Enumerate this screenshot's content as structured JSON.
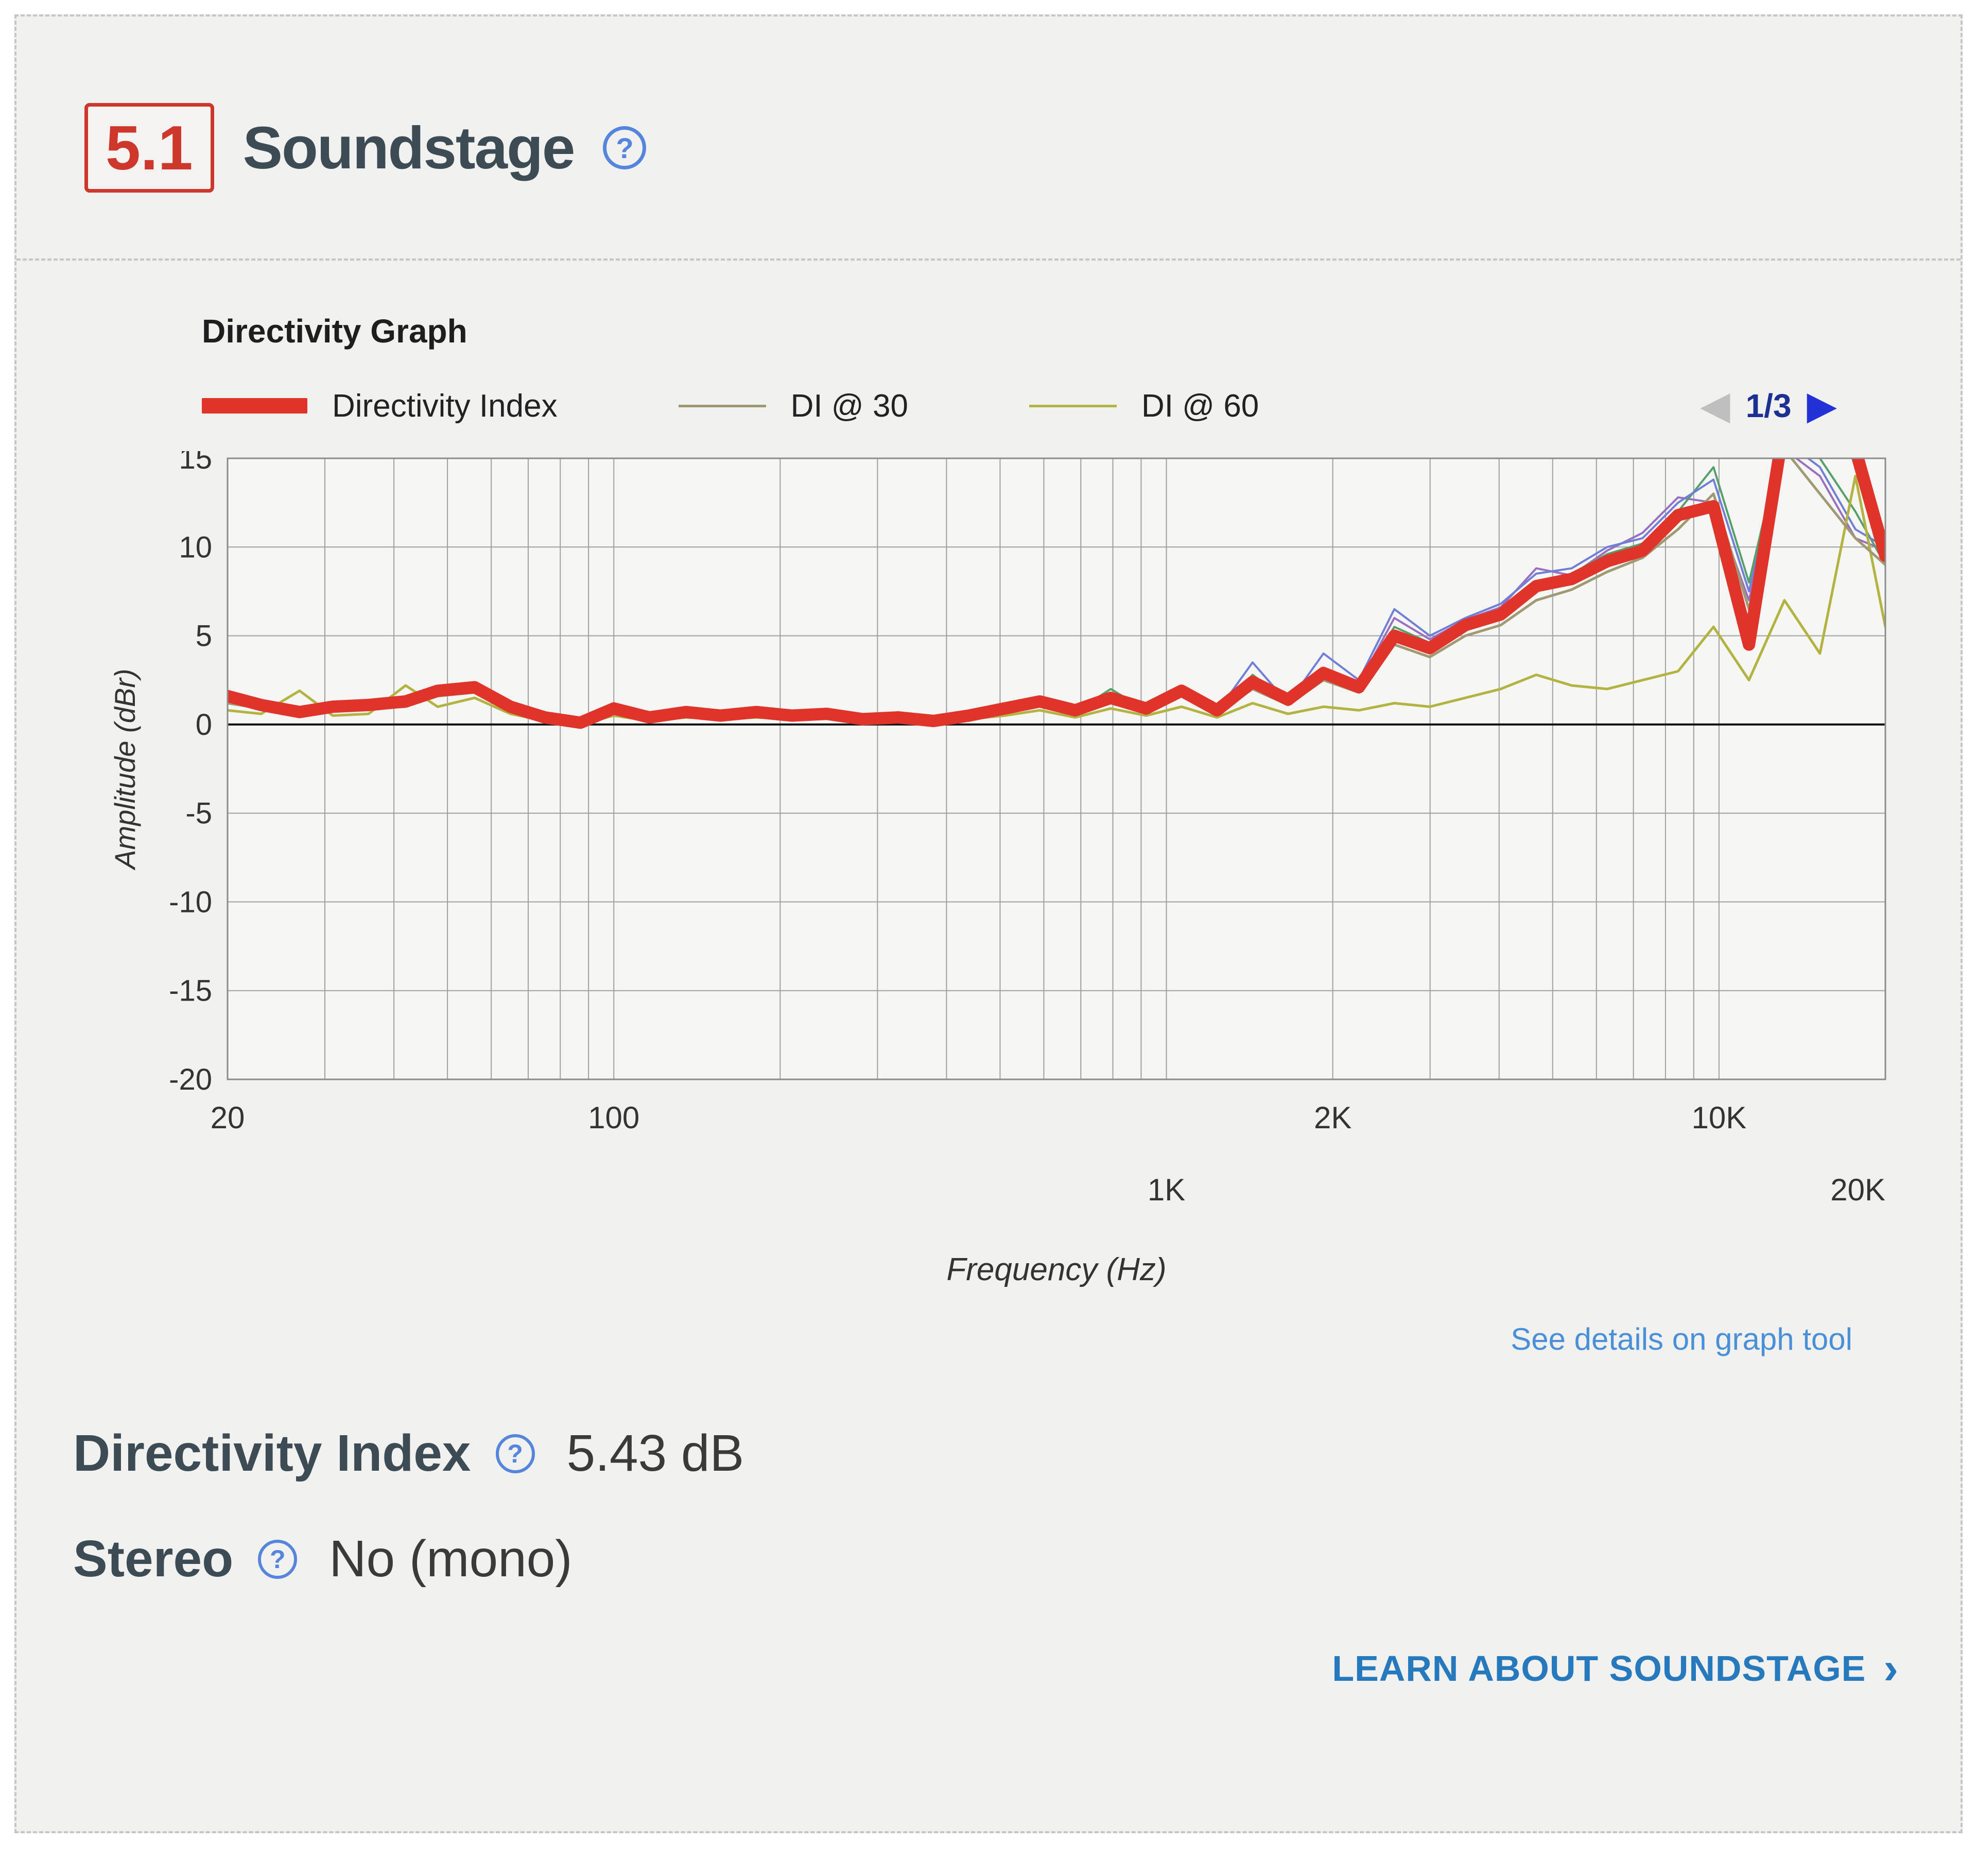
{
  "icons": {
    "help": "?",
    "prev": "◀",
    "next": "▶",
    "chevron": "›"
  },
  "header": {
    "section_number": "5.1",
    "title": "Soundstage"
  },
  "graph": {
    "title": "Directivity Graph",
    "legend": [
      {
        "label": "Directivity Index",
        "color": "#e0342b",
        "thick": true
      },
      {
        "label": "DI @ 30",
        "color": "#a09a74",
        "thick": false
      },
      {
        "label": "DI @ 60",
        "color": "#b3b342",
        "thick": false
      }
    ],
    "pagination": {
      "current": "1/3"
    },
    "see_details_link": "See details on graph tool"
  },
  "chart_data": {
    "type": "line",
    "title": "Directivity Graph",
    "xlabel": "Frequency (Hz)",
    "ylabel": "Amplitude (dBr)",
    "x_scale": "log",
    "xlim": [
      20,
      20000
    ],
    "ylim": [
      -20,
      15
    ],
    "grid": true,
    "y_ticks": [
      15,
      10,
      5,
      0,
      -5,
      -10,
      -15,
      -20
    ],
    "x_ticks_row1": [
      {
        "label": "20",
        "freq": 20
      },
      {
        "label": "100",
        "freq": 100
      },
      {
        "label": "2K",
        "freq": 2000
      },
      {
        "label": "10K",
        "freq": 10000
      }
    ],
    "x_ticks_row2": [
      {
        "label": "1K",
        "freq": 1000
      },
      {
        "label": "20K",
        "freq": 20000
      }
    ],
    "x": [
      20,
      23,
      27,
      31,
      36,
      42,
      48,
      56,
      65,
      75,
      87,
      100,
      116,
      135,
      156,
      181,
      210,
      243,
      282,
      327,
      379,
      439,
      509,
      590,
      684,
      793,
      919,
      1065,
      1235,
      1432,
      1660,
      1924,
      2230,
      2585,
      2997,
      3474,
      4027,
      4669,
      5412,
      6274,
      7273,
      8432,
      9774,
      11330,
      13134,
      15226,
      17651,
      20000
    ],
    "series": [
      {
        "name": "Directivity Index",
        "color": "#e0342b",
        "width": 24,
        "values": [
          1.6,
          1.1,
          0.7,
          1.0,
          1.1,
          1.3,
          1.9,
          2.1,
          1.0,
          0.4,
          0.1,
          0.9,
          0.4,
          0.7,
          0.5,
          0.7,
          0.5,
          0.6,
          0.3,
          0.4,
          0.2,
          0.5,
          0.9,
          1.3,
          0.8,
          1.5,
          0.9,
          1.9,
          0.8,
          2.4,
          1.4,
          2.9,
          2.1,
          5.0,
          4.3,
          5.6,
          6.2,
          7.8,
          8.2,
          9.2,
          9.8,
          11.8,
          12.3,
          4.5,
          17.0,
          17.5,
          15.5,
          9.5
        ]
      },
      {
        "name": "DI @ 30",
        "color": "#a09a74",
        "width": 5,
        "values": [
          1.2,
          0.9,
          0.5,
          0.8,
          0.9,
          1.0,
          1.6,
          1.8,
          0.8,
          0.3,
          0.0,
          0.7,
          0.3,
          0.5,
          0.4,
          0.6,
          0.4,
          0.5,
          0.2,
          0.3,
          0.1,
          0.4,
          0.7,
          1.1,
          0.6,
          1.2,
          0.7,
          1.6,
          0.6,
          2.0,
          1.1,
          2.5,
          1.8,
          4.5,
          3.8,
          5.0,
          5.6,
          7.0,
          7.6,
          8.6,
          9.4,
          11.0,
          13.0,
          6.5,
          15.5,
          13.0,
          10.5,
          9.0
        ]
      },
      {
        "name": "DI @ 60",
        "color": "#b3b342",
        "width": 5,
        "values": [
          0.8,
          0.6,
          1.9,
          0.5,
          0.6,
          2.2,
          1.0,
          1.5,
          0.6,
          0.2,
          0.0,
          0.5,
          0.2,
          0.4,
          0.3,
          0.4,
          0.3,
          0.4,
          0.1,
          0.2,
          0.1,
          0.3,
          0.5,
          0.8,
          0.4,
          0.9,
          0.5,
          1.0,
          0.4,
          1.2,
          0.6,
          1.0,
          0.8,
          1.2,
          1.0,
          1.5,
          2.0,
          2.8,
          2.2,
          2.0,
          2.5,
          3.0,
          5.5,
          2.5,
          7.0,
          4.0,
          14.0,
          5.5
        ]
      },
      {
        "name": "unlabeled-blue",
        "color": "#6f7fd8",
        "width": 4,
        "values": [
          1.3,
          1.0,
          0.6,
          0.9,
          1.0,
          1.2,
          1.7,
          1.9,
          0.9,
          0.3,
          0.1,
          0.8,
          0.3,
          0.6,
          0.4,
          0.6,
          0.4,
          0.5,
          0.2,
          0.3,
          0.2,
          0.4,
          0.8,
          1.2,
          0.7,
          1.3,
          0.8,
          1.7,
          0.7,
          3.5,
          1.2,
          4.0,
          2.5,
          6.5,
          5.0,
          6.0,
          6.8,
          8.5,
          8.8,
          10.0,
          10.5,
          12.5,
          13.8,
          7.5,
          16.0,
          14.5,
          11.0,
          10.0
        ]
      },
      {
        "name": "unlabeled-green",
        "color": "#55a06a",
        "width": 4,
        "values": [
          1.4,
          1.0,
          0.6,
          0.9,
          1.0,
          1.1,
          1.8,
          2.0,
          0.9,
          0.3,
          0.1,
          0.8,
          0.3,
          0.6,
          0.4,
          0.6,
          0.4,
          0.5,
          0.2,
          0.3,
          0.2,
          0.4,
          0.8,
          1.2,
          0.7,
          2.0,
          0.8,
          1.8,
          0.7,
          2.8,
          1.3,
          3.2,
          2.2,
          5.5,
          4.6,
          5.8,
          6.5,
          8.0,
          8.5,
          9.6,
          10.2,
          12.0,
          14.5,
          8.0,
          16.5,
          15.0,
          12.0,
          9.0
        ]
      },
      {
        "name": "unlabeled-purple",
        "color": "#9a6fc0",
        "width": 4,
        "values": [
          1.5,
          1.1,
          0.7,
          1.0,
          1.1,
          1.2,
          1.8,
          2.0,
          1.0,
          0.4,
          0.1,
          0.9,
          0.4,
          0.7,
          0.5,
          0.7,
          0.5,
          0.6,
          0.3,
          0.4,
          0.2,
          0.5,
          0.9,
          1.3,
          0.8,
          1.4,
          0.9,
          1.8,
          0.8,
          2.6,
          1.3,
          3.0,
          2.3,
          6.0,
          4.8,
          5.9,
          6.6,
          8.8,
          8.4,
          9.8,
          10.8,
          12.8,
          12.5,
          7.0,
          15.5,
          14.0,
          10.5,
          9.8
        ]
      }
    ]
  },
  "specs": [
    {
      "label": "Directivity Index",
      "value": "5.43 dB"
    },
    {
      "label": "Stereo",
      "value": "No (mono)"
    }
  ],
  "learn_link": {
    "label": "LEARN ABOUT SOUNDSTAGE"
  }
}
